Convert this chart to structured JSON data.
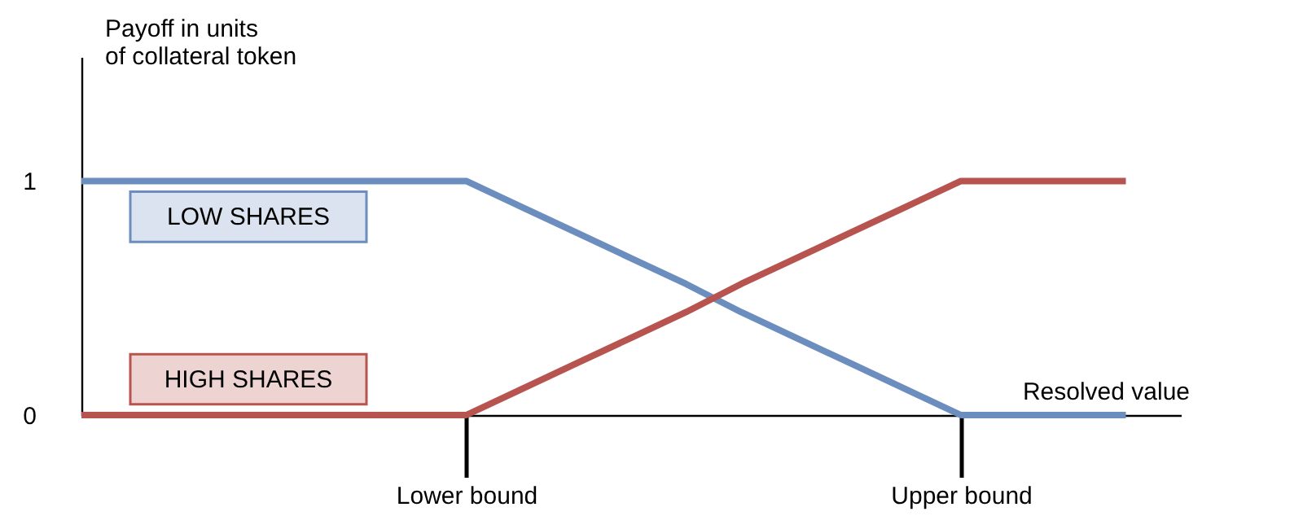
{
  "chart_data": {
    "type": "line",
    "ylabel": "Payoff in units of collateral token",
    "xlabel": "Resolved value",
    "categories": [
      null,
      null,
      null,
      null,
      null,
      null,
      null,
      "Lower bound",
      null,
      null,
      null,
      null,
      null,
      null,
      null,
      null,
      "Upper bound",
      null,
      null,
      null,
      null
    ],
    "ylim": [
      0,
      1.53
    ],
    "yticks": [
      0,
      1
    ],
    "grid": false,
    "legend": false,
    "series": [
      {
        "name": "LOW SHARES",
        "color": "#6c8ebf",
        "values": [
          1,
          1,
          1,
          1,
          1,
          1,
          1,
          1,
          0.89,
          0.78,
          0.67,
          0.56,
          0.44,
          0.33,
          0.22,
          0.11,
          0,
          0,
          0,
          0,
          null
        ]
      },
      {
        "name": "HIGH SHARES",
        "color": "#b85450",
        "values": [
          0,
          0,
          0,
          0,
          0,
          0,
          0,
          0,
          0.11,
          0.22,
          0.33,
          0.44,
          0.56,
          0.67,
          0.78,
          0.89,
          1,
          1,
          1,
          1,
          null
        ]
      }
    ]
  }
}
